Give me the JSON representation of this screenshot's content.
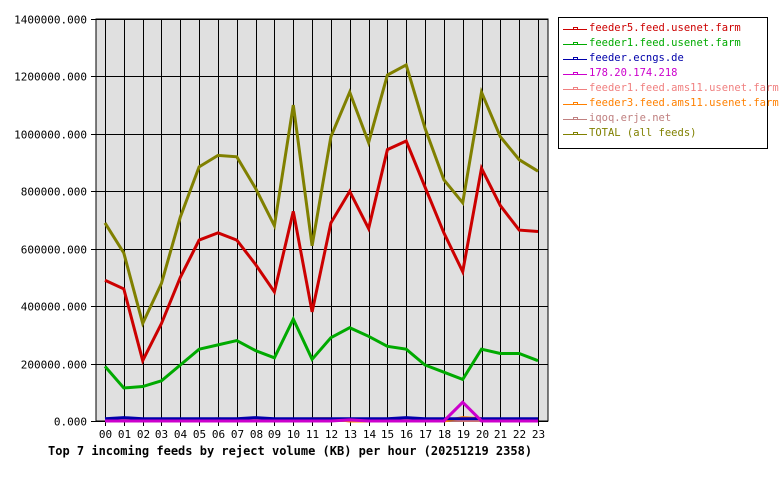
{
  "chart_data": {
    "type": "line",
    "title": "Top 7 incoming feeds by reject volume (KB) per hour (20251219 2358)",
    "xlabel": "",
    "ylabel": "",
    "ylim": [
      0,
      1400000
    ],
    "yticks": [
      "0.000",
      "200000.000",
      "400000.000",
      "600000.000",
      "800000.000",
      "1000000.000",
      "1200000.000",
      "1400000.000"
    ],
    "grid": true,
    "legend_position": "right",
    "x": [
      "00",
      "01",
      "02",
      "03",
      "04",
      "05",
      "06",
      "07",
      "08",
      "09",
      "10",
      "11",
      "12",
      "13",
      "14",
      "15",
      "16",
      "17",
      "18",
      "19",
      "20",
      "21",
      "22",
      "23"
    ],
    "series": [
      {
        "name": "feeder5.feed.usenet.farm",
        "color": "#cc0000",
        "values": [
          490000,
          460000,
          210000,
          340000,
          500000,
          630000,
          655000,
          630000,
          545000,
          450000,
          730000,
          380000,
          690000,
          800000,
          670000,
          945000,
          975000,
          815000,
          655000,
          520000,
          880000,
          750000,
          665000,
          660000
        ]
      },
      {
        "name": "feeder1.feed.usenet.farm",
        "color": "#00aa00",
        "values": [
          190000,
          115000,
          120000,
          140000,
          195000,
          250000,
          265000,
          280000,
          245000,
          220000,
          355000,
          215000,
          290000,
          325000,
          295000,
          260000,
          250000,
          195000,
          170000,
          145000,
          250000,
          235000,
          235000,
          210000
        ]
      },
      {
        "name": "feeder.ecngs.de",
        "color": "#0000aa",
        "values": [
          8000,
          12000,
          8000,
          8000,
          8000,
          8000,
          8000,
          8000,
          12000,
          8000,
          8000,
          8000,
          8000,
          8000,
          8000,
          8000,
          12000,
          8000,
          8000,
          8000,
          8000,
          8000,
          8000,
          8000
        ]
      },
      {
        "name": "178.20.174.218",
        "color": "#cc00cc",
        "values": [
          0,
          0,
          0,
          0,
          0,
          0,
          0,
          0,
          0,
          0,
          0,
          0,
          0,
          4000,
          0,
          0,
          0,
          0,
          0,
          65000,
          0,
          0,
          0,
          0
        ]
      },
      {
        "name": "feeder1.feed.ams11.usenet.farm",
        "color": "#f08080",
        "values": [
          3000,
          3000,
          3000,
          3000,
          3000,
          3000,
          8000,
          3000,
          3000,
          3000,
          3000,
          3000,
          3000,
          3000,
          3000,
          3000,
          3000,
          6000,
          6000,
          3000,
          3000,
          3000,
          3000,
          3000
        ]
      },
      {
        "name": "feeder3.feed.ams11.usenet.farm",
        "color": "#ff8000",
        "values": [
          0,
          0,
          0,
          0,
          0,
          0,
          0,
          0,
          0,
          0,
          0,
          8000,
          8000,
          0,
          0,
          0,
          0,
          0,
          0,
          12000,
          8000,
          0,
          0,
          0
        ]
      },
      {
        "name": "iqoq.erje.net",
        "color": "#c08080",
        "values": [
          2000,
          2000,
          2000,
          2000,
          2000,
          2000,
          2000,
          2000,
          2000,
          2000,
          2000,
          2000,
          2000,
          2000,
          2000,
          2000,
          2000,
          2000,
          2000,
          2000,
          2000,
          2000,
          2000,
          2000
        ]
      },
      {
        "name": "TOTAL (all feeds)",
        "color": "#808000",
        "values": [
          690000,
          585000,
          340000,
          480000,
          710000,
          885000,
          925000,
          920000,
          810000,
          680000,
          1100000,
          610000,
          990000,
          1145000,
          970000,
          1205000,
          1240000,
          1020000,
          840000,
          760000,
          1145000,
          990000,
          910000,
          870000
        ]
      }
    ]
  },
  "legend": {
    "items": [
      {
        "label": "feeder5.feed.usenet.farm",
        "color": "#cc0000"
      },
      {
        "label": "feeder1.feed.usenet.farm",
        "color": "#00aa00"
      },
      {
        "label": "feeder.ecngs.de",
        "color": "#0000aa"
      },
      {
        "label": "178.20.174.218",
        "color": "#cc00cc"
      },
      {
        "label": "feeder1.feed.ams11.usenet.farm",
        "color": "#f08080"
      },
      {
        "label": "feeder3.feed.ams11.usenet.farm",
        "color": "#ff8000"
      },
      {
        "label": "iqoq.erje.net",
        "color": "#c08080"
      },
      {
        "label": "TOTAL (all feeds)",
        "color": "#808000"
      }
    ]
  },
  "caption": "Top 7 incoming feeds by reject volume (KB) per hour (20251219 2358)",
  "colors": {
    "plot_bg": "#e0e0e0",
    "grid": "#000000",
    "axis_text": "#000000"
  }
}
